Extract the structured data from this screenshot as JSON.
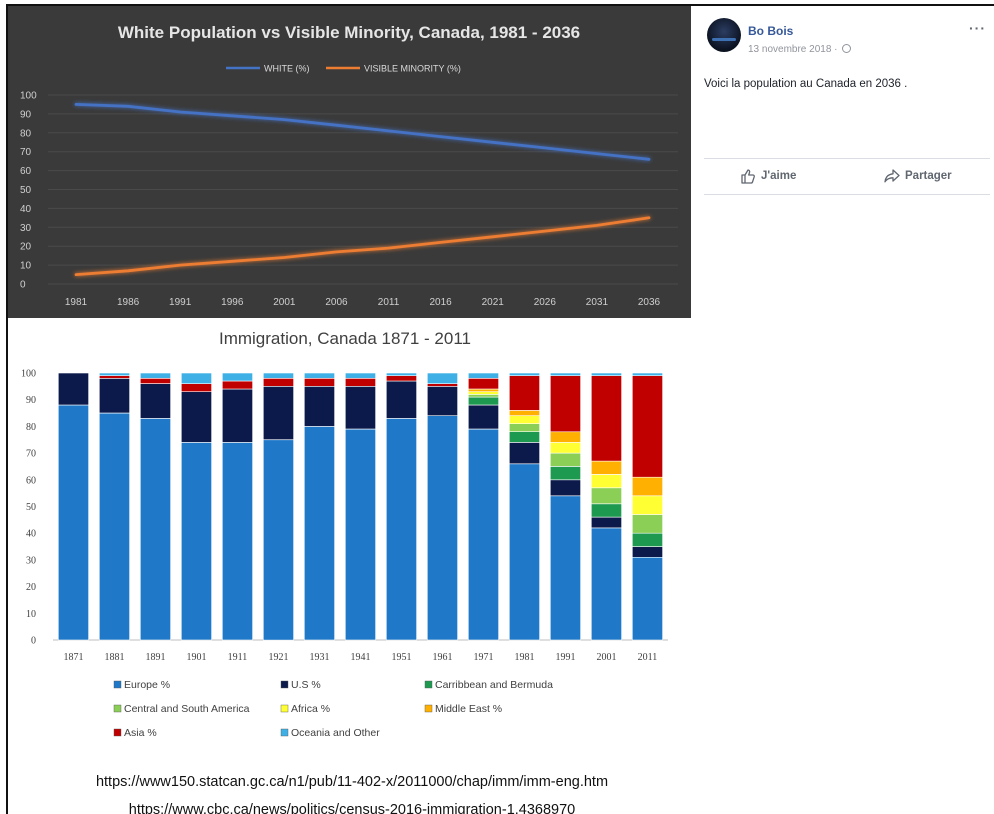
{
  "post": {
    "author": "Bo Bois",
    "date": "13 novembre 2018 · ",
    "text": "Voici la population au Canada en 2036 .",
    "actions": {
      "like": "J'aime",
      "share": "Partager"
    },
    "more_label": "···"
  },
  "chart_data": [
    {
      "type": "line",
      "title": "White Population vs Visible Minority, Canada, 1981 - 2036",
      "x": [
        1981,
        1986,
        1991,
        1996,
        2001,
        2006,
        2011,
        2016,
        2021,
        2026,
        2031,
        2036
      ],
      "series": [
        {
          "name": "WHITE (%)",
          "color": "#4472c4",
          "values": [
            95,
            94,
            91,
            89,
            87,
            84,
            81,
            78,
            75,
            72,
            69,
            66
          ]
        },
        {
          "name": "VISIBLE MINORITY (%)",
          "color": "#ed7d31",
          "values": [
            5,
            7,
            10,
            12,
            14,
            17,
            19,
            22,
            25,
            28,
            31,
            35
          ]
        }
      ],
      "ylim": [
        0,
        100
      ],
      "yticks": [
        0,
        10,
        20,
        30,
        40,
        50,
        60,
        70,
        80,
        90,
        100
      ],
      "background": "#3a3a3a",
      "legend": "top"
    },
    {
      "type": "bar",
      "stacked": true,
      "title": "Immigration, Canada 1871 - 2011",
      "categories": [
        "1871",
        "1881",
        "1891",
        "1901",
        "1911",
        "1921",
        "1931",
        "1941",
        "1951",
        "1961",
        "1971",
        "1981",
        "1991",
        "2001",
        "2011"
      ],
      "ylim": [
        0,
        100
      ],
      "yticks": [
        0,
        10,
        20,
        30,
        40,
        50,
        60,
        70,
        80,
        90,
        100
      ],
      "legend": "bottom",
      "series": [
        {
          "name": "Europe %",
          "color": "#1f78c8",
          "values": [
            88,
            85,
            83,
            74,
            74,
            75,
            80,
            79,
            83,
            84,
            79,
            66,
            54,
            42,
            31
          ]
        },
        {
          "name": "U.S %",
          "color": "#0b1a4a",
          "values": [
            12,
            13,
            13,
            19,
            20,
            20,
            15,
            16,
            14,
            11,
            9,
            8,
            6,
            4,
            4
          ]
        },
        {
          "name": "Carribbean and Bermuda",
          "color": "#1e9950",
          "values": [
            0,
            0,
            0,
            0,
            0,
            0,
            0,
            0,
            0,
            0,
            3,
            4,
            5,
            5,
            5
          ]
        },
        {
          "name": "Central and South America",
          "color": "#8ccf57",
          "values": [
            0,
            0,
            0,
            0,
            0,
            0,
            0,
            0,
            0,
            0,
            1,
            3,
            5,
            6,
            7
          ]
        },
        {
          "name": "Africa %",
          "color": "#ffff33",
          "values": [
            0,
            0,
            0,
            0,
            0,
            0,
            0,
            0,
            0,
            0,
            1,
            3,
            4,
            5,
            7
          ]
        },
        {
          "name": "Middle East %",
          "color": "#ffb000",
          "values": [
            0,
            0,
            0,
            0,
            0,
            0,
            0,
            0,
            0,
            0,
            1,
            2,
            4,
            5,
            7
          ]
        },
        {
          "name": "Asia %",
          "color": "#c00000",
          "values": [
            0,
            1,
            2,
            3,
            3,
            3,
            3,
            3,
            2,
            1,
            4,
            13,
            21,
            32,
            38
          ]
        },
        {
          "name": "Oceania and Other",
          "color": "#3fb0e6",
          "values": [
            0,
            1,
            2,
            4,
            3,
            2,
            2,
            2,
            1,
            4,
            2,
            1,
            1,
            1,
            1
          ]
        }
      ]
    }
  ],
  "sources": [
    "https://www150.statcan.gc.ca/n1/pub/11-402-x/2011000/chap/imm/imm-eng.htm",
    "https://www.cbc.ca/news/politics/census-2016-immigration-1.4368970"
  ]
}
